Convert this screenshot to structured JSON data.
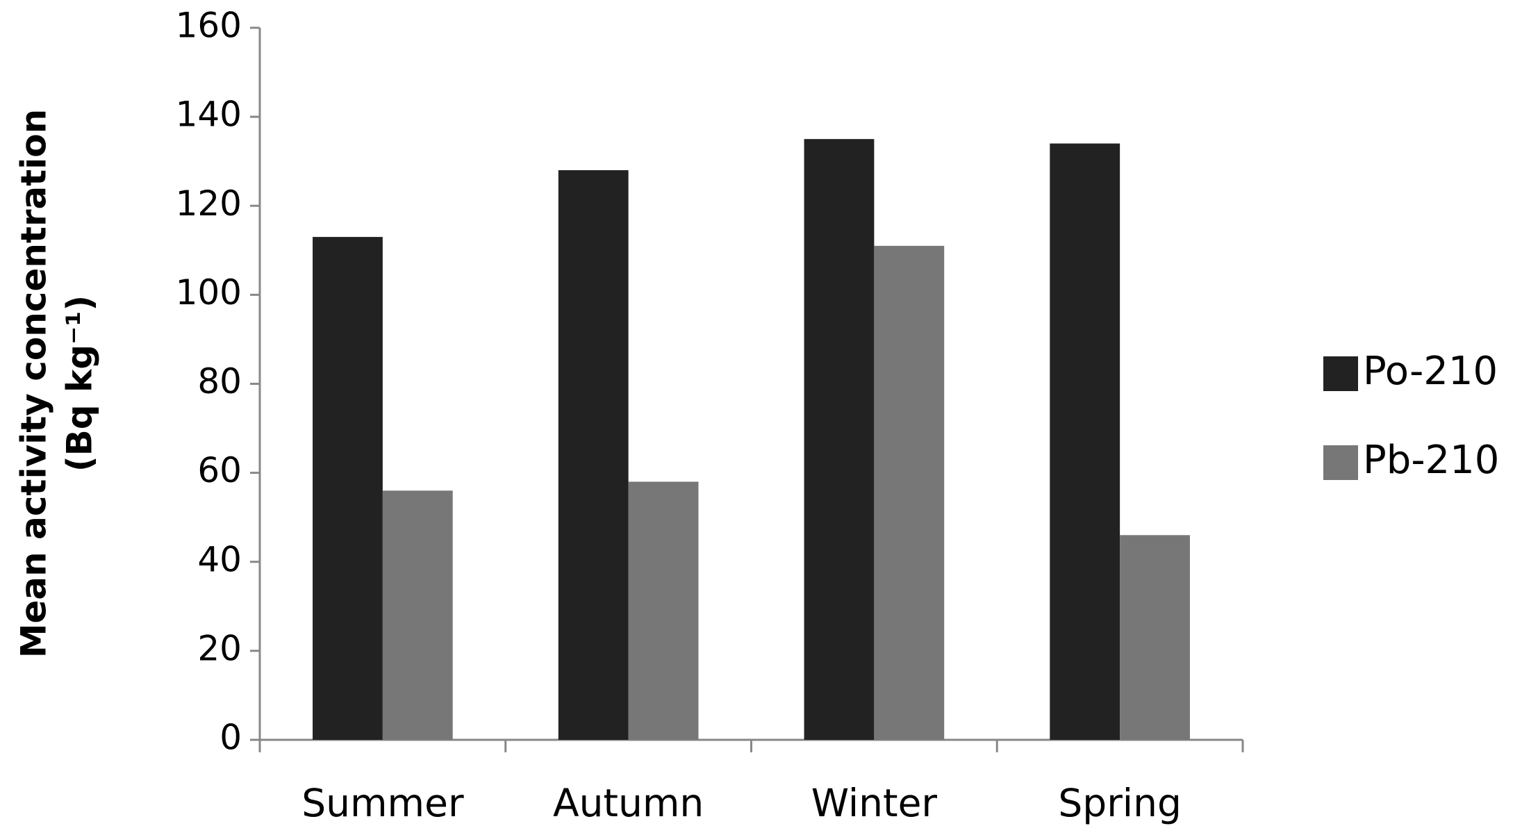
{
  "chart_data": {
    "type": "bar",
    "ylabel": [
      "Mean activity concentration",
      "(Bq kg⁻¹)"
    ],
    "categories": [
      "Summer",
      "Autumn",
      "Winter",
      "Spring"
    ],
    "series": [
      {
        "name": "Po-210",
        "color": "#222222",
        "values": [
          113,
          128,
          135,
          134
        ]
      },
      {
        "name": "Pb-210",
        "color": "#777777",
        "values": [
          56,
          58,
          111,
          46
        ]
      }
    ],
    "ylim": [
      0,
      160
    ],
    "yticks": [
      0,
      20,
      40,
      60,
      80,
      100,
      120,
      140,
      160
    ],
    "grid": false,
    "legend": "right"
  }
}
